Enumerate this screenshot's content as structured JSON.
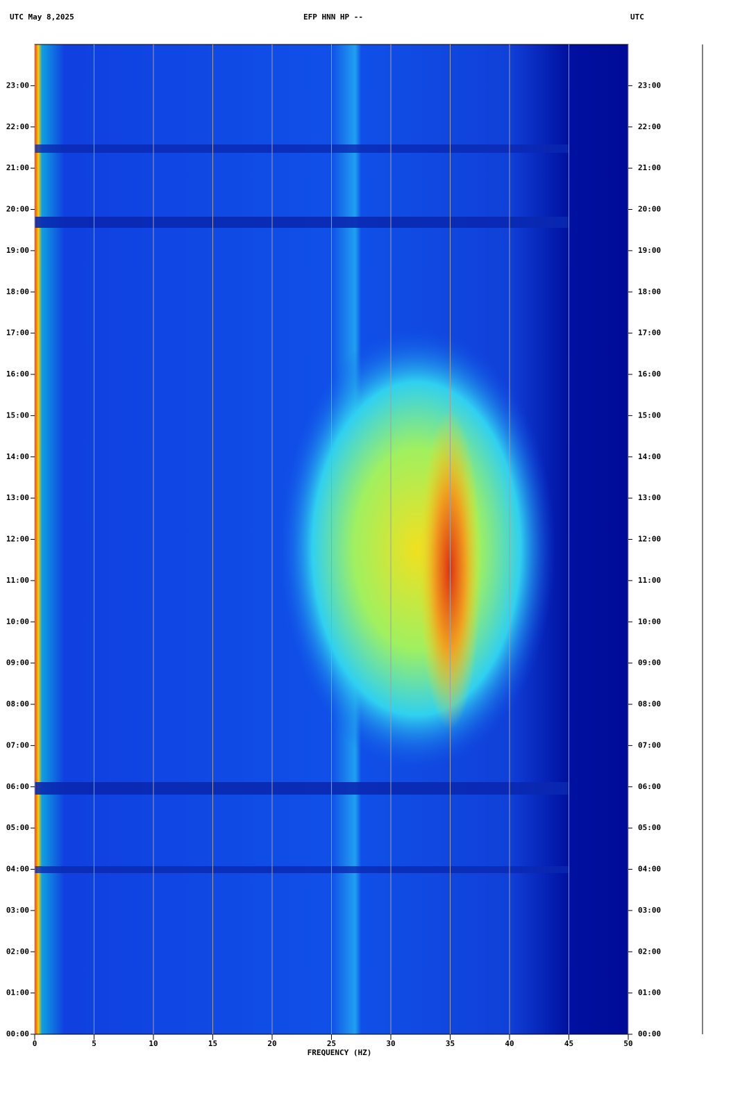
{
  "chart_data": {
    "type": "spectrogram",
    "title": "EFP HNN HP --",
    "subtitle": "UTC  May 8,2025",
    "right_label": "UTC",
    "xlabel": "FREQUENCY (HZ)",
    "xlim": [
      0,
      50
    ],
    "xticks": [
      0,
      5,
      10,
      15,
      20,
      25,
      30,
      35,
      40,
      45,
      50
    ],
    "ylim": [
      0,
      24
    ],
    "yticks": [
      {
        "value": 0,
        "label": "00:00"
      },
      {
        "value": 1,
        "label": "01:00"
      },
      {
        "value": 2,
        "label": "02:00"
      },
      {
        "value": 3,
        "label": "03:00"
      },
      {
        "value": 4,
        "label": "04:00"
      },
      {
        "value": 5,
        "label": "05:00"
      },
      {
        "value": 6,
        "label": "06:00"
      },
      {
        "value": 7,
        "label": "07:00"
      },
      {
        "value": 8,
        "label": "08:00"
      },
      {
        "value": 9,
        "label": "09:00"
      },
      {
        "value": 10,
        "label": "10:00"
      },
      {
        "value": 11,
        "label": "11:00"
      },
      {
        "value": 12,
        "label": "12:00"
      },
      {
        "value": 13,
        "label": "13:00"
      },
      {
        "value": 14,
        "label": "14:00"
      },
      {
        "value": 15,
        "label": "15:00"
      },
      {
        "value": 16,
        "label": "16:00"
      },
      {
        "value": 17,
        "label": "17:00"
      },
      {
        "value": 18,
        "label": "18:00"
      },
      {
        "value": 19,
        "label": "19:00"
      },
      {
        "value": 20,
        "label": "20:00"
      },
      {
        "value": 21,
        "label": "21:00"
      },
      {
        "value": 22,
        "label": "22:00"
      },
      {
        "value": 23,
        "label": "23:00"
      }
    ],
    "grid": true
  }
}
